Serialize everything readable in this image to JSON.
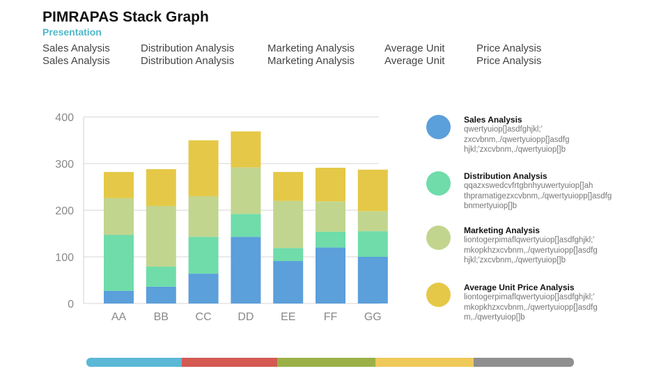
{
  "header": {
    "title": "PIMRAPAS Stack Graph",
    "subtitle": "Presentation",
    "row1": [
      "Sales Analysis",
      "Distribution Analysis",
      "Marketing Analysis",
      "Average Unit",
      "Price Analysis"
    ],
    "row2": [
      "Sales Analysis",
      "Distribution Analysis",
      "Marketing Analysis",
      "Average Unit",
      "Price Analysis"
    ]
  },
  "legend": [
    {
      "title": "Sales Analysis",
      "color": "#5b9fdb",
      "lines": [
        "qwertyuiop[]asdfghjkl;'",
        "zxcvbnm,./qwertyuiopp[]asdfg",
        "hjkl;'zxcvbnm,./qwertyuiop[]b"
      ]
    },
    {
      "title": "Distribution Analysis",
      "color": "#6fdcaa",
      "lines": [
        "qqazxswedcvfrtgbnhyuwertyuiop[]ah",
        "thpramatigezxcvbnm,./qwertyuiopp[]asdfg",
        "bnmertyuiop[]b"
      ]
    },
    {
      "title": "Marketing Analysis",
      "color": "#c2d58e",
      "lines": [
        "liontogerpimaflqwertyuiop[]asdfghjkl;'",
        "mkopkhzxcvbnm,./qwertyuiopp[]asdfg",
        "hjkl;'zxcvbnm,./qwertyuiop[]b"
      ]
    },
    {
      "title": "Average Unit Price Analysis",
      "color": "#e5c847",
      "lines": [
        "liontogerpimaflqwertyuiop[]asdfghjkl;'",
        "mkopkhzxcvbnm,./qwertyuiopp[]asdfg",
        "m,./qwertyuiop[]b"
      ]
    }
  ],
  "bottom_bar": [
    "#5bb8d6",
    "#d45a52",
    "#9bb047",
    "#efc95a",
    "#8f8f8f"
  ],
  "chart_data": {
    "type": "bar",
    "stacked": true,
    "categories": [
      "AA",
      "BB",
      "CC",
      "DD",
      "EE",
      "FF",
      "GG"
    ],
    "ylim": [
      0,
      400
    ],
    "yticks": [
      0,
      100,
      200,
      300,
      400
    ],
    "grid": true,
    "series": [
      {
        "name": "Sales Analysis",
        "color": "#5b9fdb",
        "values": [
          27,
          36,
          64,
          143,
          91,
          120,
          100
        ]
      },
      {
        "name": "Distribution Analysis",
        "color": "#6fdcaa",
        "values": [
          120,
          43,
          79,
          49,
          28,
          34,
          55
        ]
      },
      {
        "name": "Marketing Analysis",
        "color": "#c2d58e",
        "values": [
          79,
          130,
          87,
          100,
          101,
          65,
          43
        ]
      },
      {
        "name": "Average Unit Price Analysis",
        "color": "#e5c847",
        "values": [
          56,
          79,
          120,
          77,
          62,
          72,
          89
        ]
      }
    ]
  }
}
